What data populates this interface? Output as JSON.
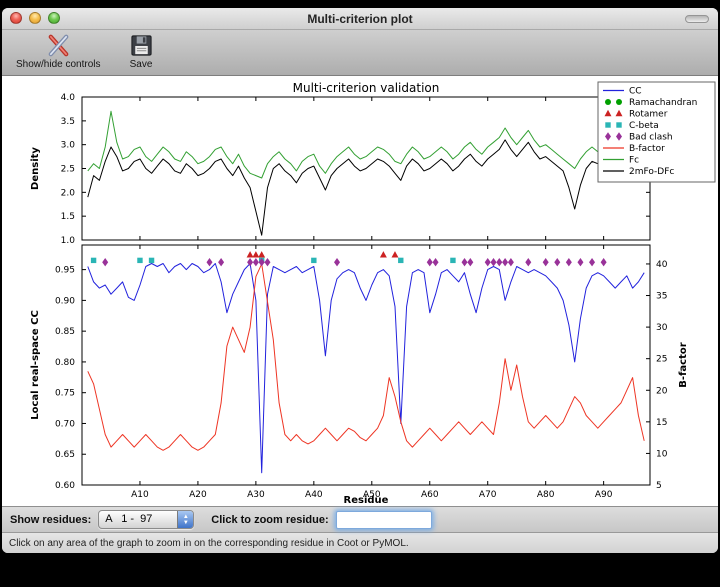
{
  "window": {
    "title": "Multi-criterion plot"
  },
  "toolbar": {
    "buttons": [
      {
        "label": "Show/hide controls",
        "icon": "crossed-tools-icon"
      },
      {
        "label": "Save",
        "icon": "floppy-disk-icon"
      }
    ]
  },
  "controls": {
    "show_residues_label": "Show residues:",
    "residue_range_value": "A   1 -  97",
    "zoom_residue_label": "Click to zoom residue:",
    "zoom_input_value": ""
  },
  "status": {
    "text": "Click on any area of the graph to zoom in on the corresponding residue in Coot or PyMOL."
  },
  "accent_colors": {
    "focus_ring": "#73aae6",
    "aqua_stepper": "#3f74c9"
  },
  "chart_data": {
    "type": "line",
    "title": "Multi-criterion validation",
    "x_label": "Residue",
    "x_range": [
      0,
      98
    ],
    "x_ticks": [
      {
        "v": 10,
        "label": "A10"
      },
      {
        "v": 20,
        "label": "A20"
      },
      {
        "v": 30,
        "label": "A30"
      },
      {
        "v": 40,
        "label": "A40"
      },
      {
        "v": 50,
        "label": "A50"
      },
      {
        "v": 60,
        "label": "A60"
      },
      {
        "v": 70,
        "label": "A70"
      },
      {
        "v": 80,
        "label": "A80"
      },
      {
        "v": 90,
        "label": "A90"
      }
    ],
    "panels": [
      {
        "name": "density",
        "ylabel": "Density",
        "ylim": [
          1.0,
          4.0
        ],
        "yticks": [
          "1.0",
          "1.5",
          "2.0",
          "2.5",
          "3.0",
          "3.5",
          "4.0"
        ],
        "series": [
          {
            "name": "Fc",
            "color": "#33a033",
            "values": [
              2.45,
              2.6,
              2.5,
              2.95,
              3.7,
              3.05,
              2.7,
              2.75,
              2.9,
              2.95,
              2.75,
              2.65,
              2.8,
              2.95,
              2.85,
              2.7,
              2.65,
              2.85,
              2.75,
              2.6,
              2.65,
              2.75,
              2.9,
              2.95,
              2.75,
              2.6,
              2.8,
              2.55,
              2.4,
              2.35,
              2.3,
              2.6,
              2.75,
              2.85,
              2.7,
              2.6,
              2.45,
              2.65,
              2.75,
              2.8,
              2.55,
              2.4,
              2.6,
              2.75,
              2.85,
              2.95,
              2.8,
              2.7,
              2.75,
              2.85,
              2.95,
              2.9,
              2.8,
              2.65,
              2.6,
              2.8,
              2.95,
              2.85,
              2.7,
              2.75,
              2.85,
              2.95,
              2.85,
              2.7,
              2.8,
              2.95,
              3.05,
              2.9,
              2.8,
              2.95,
              3.05,
              3.15,
              3.35,
              3.15,
              3.0,
              3.15,
              3.3,
              3.1,
              2.95,
              3.0,
              2.9,
              2.8,
              2.7,
              2.6,
              2.5,
              2.7,
              2.85,
              2.95,
              2.85,
              2.75,
              2.9,
              3.05,
              3.45,
              3.15,
              2.6,
              3.1,
              3.4
            ]
          },
          {
            "name": "2mFo-DFc",
            "color": "#000000",
            "values": [
              1.9,
              2.35,
              2.25,
              2.65,
              2.95,
              2.75,
              2.45,
              2.5,
              2.65,
              2.7,
              2.5,
              2.4,
              2.55,
              2.7,
              2.6,
              2.45,
              2.4,
              2.6,
              2.5,
              2.35,
              2.4,
              2.5,
              2.65,
              2.7,
              2.5,
              2.35,
              2.55,
              2.3,
              2.1,
              1.6,
              1.1,
              2.1,
              2.5,
              2.6,
              2.45,
              2.35,
              2.2,
              2.4,
              2.5,
              2.55,
              2.3,
              2.05,
              2.35,
              2.5,
              2.6,
              2.7,
              2.55,
              2.45,
              2.5,
              2.6,
              2.7,
              2.65,
              2.55,
              2.4,
              2.25,
              2.55,
              2.7,
              2.6,
              2.45,
              2.5,
              2.6,
              2.7,
              2.6,
              2.45,
              2.55,
              2.7,
              2.8,
              2.65,
              2.55,
              2.7,
              2.8,
              2.9,
              3.1,
              2.9,
              2.75,
              2.9,
              3.05,
              2.85,
              2.7,
              2.75,
              2.65,
              2.55,
              2.45,
              2.1,
              1.65,
              2.15,
              2.5,
              2.65,
              2.6,
              2.45,
              2.6,
              2.8,
              3.15,
              2.9,
              2.35,
              2.85,
              3.1
            ]
          }
        ]
      },
      {
        "name": "cc-bfactor",
        "ylabel": "Local real-space CC",
        "ylim": [
          0.6,
          0.99
        ],
        "yticks": [
          "0.60",
          "0.65",
          "0.70",
          "0.75",
          "0.80",
          "0.85",
          "0.90",
          "0.95"
        ],
        "y2label": "B-factor",
        "y2lim": [
          5,
          43
        ],
        "y2ticks": [
          "5",
          "10",
          "15",
          "20",
          "25",
          "30",
          "35",
          "40"
        ],
        "series": [
          {
            "name": "CC",
            "axis": "left",
            "color": "#2222dd",
            "values": [
              0.955,
              0.93,
              0.92,
              0.925,
              0.91,
              0.92,
              0.93,
              0.905,
              0.9,
              0.925,
              0.955,
              0.96,
              0.955,
              0.96,
              0.945,
              0.955,
              0.96,
              0.95,
              0.96,
              0.955,
              0.945,
              0.95,
              0.96,
              0.93,
              0.88,
              0.91,
              0.93,
              0.95,
              0.96,
              0.9,
              0.62,
              0.91,
              0.955,
              0.95,
              0.945,
              0.95,
              0.955,
              0.945,
              0.95,
              0.955,
              0.9,
              0.81,
              0.9,
              0.935,
              0.945,
              0.95,
              0.945,
              0.92,
              0.9,
              0.925,
              0.945,
              0.95,
              0.94,
              0.89,
              0.7,
              0.89,
              0.945,
              0.95,
              0.945,
              0.88,
              0.91,
              0.945,
              0.95,
              0.94,
              0.93,
              0.945,
              0.91,
              0.88,
              0.92,
              0.95,
              0.955,
              0.95,
              0.9,
              0.93,
              0.955,
              0.95,
              0.945,
              0.95,
              0.945,
              0.94,
              0.93,
              0.92,
              0.9,
              0.86,
              0.8,
              0.87,
              0.92,
              0.94,
              0.945,
              0.94,
              0.93,
              0.92,
              0.93,
              0.94,
              0.92,
              0.93,
              0.945
            ]
          },
          {
            "name": "B-factor",
            "axis": "right",
            "color": "#ee3524",
            "values": [
              23,
              21,
              17,
              13,
              11,
              12,
              13,
              12,
              11,
              12,
              13,
              12,
              11,
              10.5,
              11,
              12,
              13,
              12,
              11,
              10.5,
              11,
              12,
              13,
              18,
              27,
              30,
              28,
              26,
              30,
              38,
              40,
              34,
              28,
              18,
              13,
              12,
              13,
              12,
              11.5,
              12,
              13,
              14,
              13,
              12,
              13,
              14,
              13.5,
              12.5,
              12,
              13,
              14,
              16,
              22,
              19,
              15,
              12,
              11,
              12,
              13,
              14,
              13,
              12,
              13,
              14,
              15,
              14,
              13,
              14,
              15,
              14,
              13,
              18,
              25,
              20,
              24,
              19,
              15,
              14,
              15,
              16,
              15,
              14,
              15,
              17,
              19,
              18,
              16,
              15,
              14,
              15,
              16,
              17,
              18,
              20,
              22,
              16,
              12
            ]
          }
        ],
        "markers": [
          {
            "name": "Ramachandran",
            "shape": "circle",
            "color": "#00a000",
            "y": 0.974,
            "residues": []
          },
          {
            "name": "Rotamer",
            "shape": "triangle",
            "color": "#cc2222",
            "y": 0.974,
            "residues": [
              29,
              30,
              31,
              52,
              54
            ]
          },
          {
            "name": "C-beta",
            "shape": "square",
            "color": "#2ab5b5",
            "y": 0.965,
            "residues": [
              2,
              10,
              12,
              31,
              40,
              55,
              64
            ]
          },
          {
            "name": "Bad clash",
            "shape": "diamond",
            "color": "#993299",
            "y": 0.962,
            "residues": [
              4,
              22,
              24,
              29,
              30,
              31,
              32,
              44,
              60,
              61,
              66,
              67,
              70,
              71,
              72,
              73,
              74,
              77,
              80,
              82,
              84,
              86,
              88,
              90
            ]
          }
        ]
      }
    ],
    "legend": {
      "position": "upper-right",
      "entries": [
        {
          "label": "CC",
          "type": "line",
          "color": "#2222dd"
        },
        {
          "label": "Ramachandran",
          "type": "circle",
          "color": "#00a000"
        },
        {
          "label": "Rotamer",
          "type": "triangle",
          "color": "#cc2222"
        },
        {
          "label": "C-beta",
          "type": "square",
          "color": "#2ab5b5"
        },
        {
          "label": "Bad clash",
          "type": "diamond",
          "color": "#993299"
        },
        {
          "label": "B-factor",
          "type": "line",
          "color": "#ee3524"
        },
        {
          "label": "Fc",
          "type": "line",
          "color": "#33a033"
        },
        {
          "label": "2mFo-DFc",
          "type": "line",
          "color": "#000000"
        }
      ]
    }
  }
}
